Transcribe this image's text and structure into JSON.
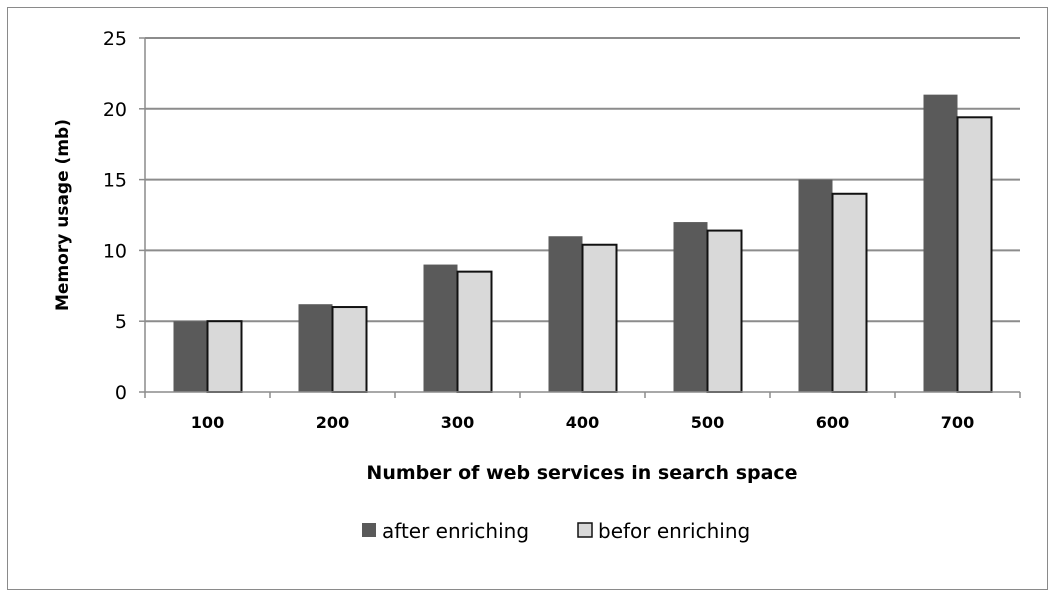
{
  "chart_data": {
    "type": "bar",
    "title": "",
    "xlabel": "Number of web services in search space",
    "ylabel": "Memory usage (mb)",
    "categories": [
      "100",
      "200",
      "300",
      "400",
      "500",
      "600",
      "700"
    ],
    "series": [
      {
        "name": "after enriching",
        "color": "#5a5a5a",
        "values": [
          5.0,
          6.2,
          9.0,
          11.0,
          12.0,
          15.0,
          21.0
        ]
      },
      {
        "name": "befor enriching",
        "color": "#d9d9d9",
        "values": [
          5.0,
          6.0,
          8.5,
          10.4,
          11.4,
          14.0,
          19.4
        ]
      }
    ],
    "ylim": [
      0,
      25
    ],
    "yticks": [
      0,
      5,
      10,
      15,
      20,
      25
    ],
    "grid": true,
    "legend": "bottom"
  }
}
